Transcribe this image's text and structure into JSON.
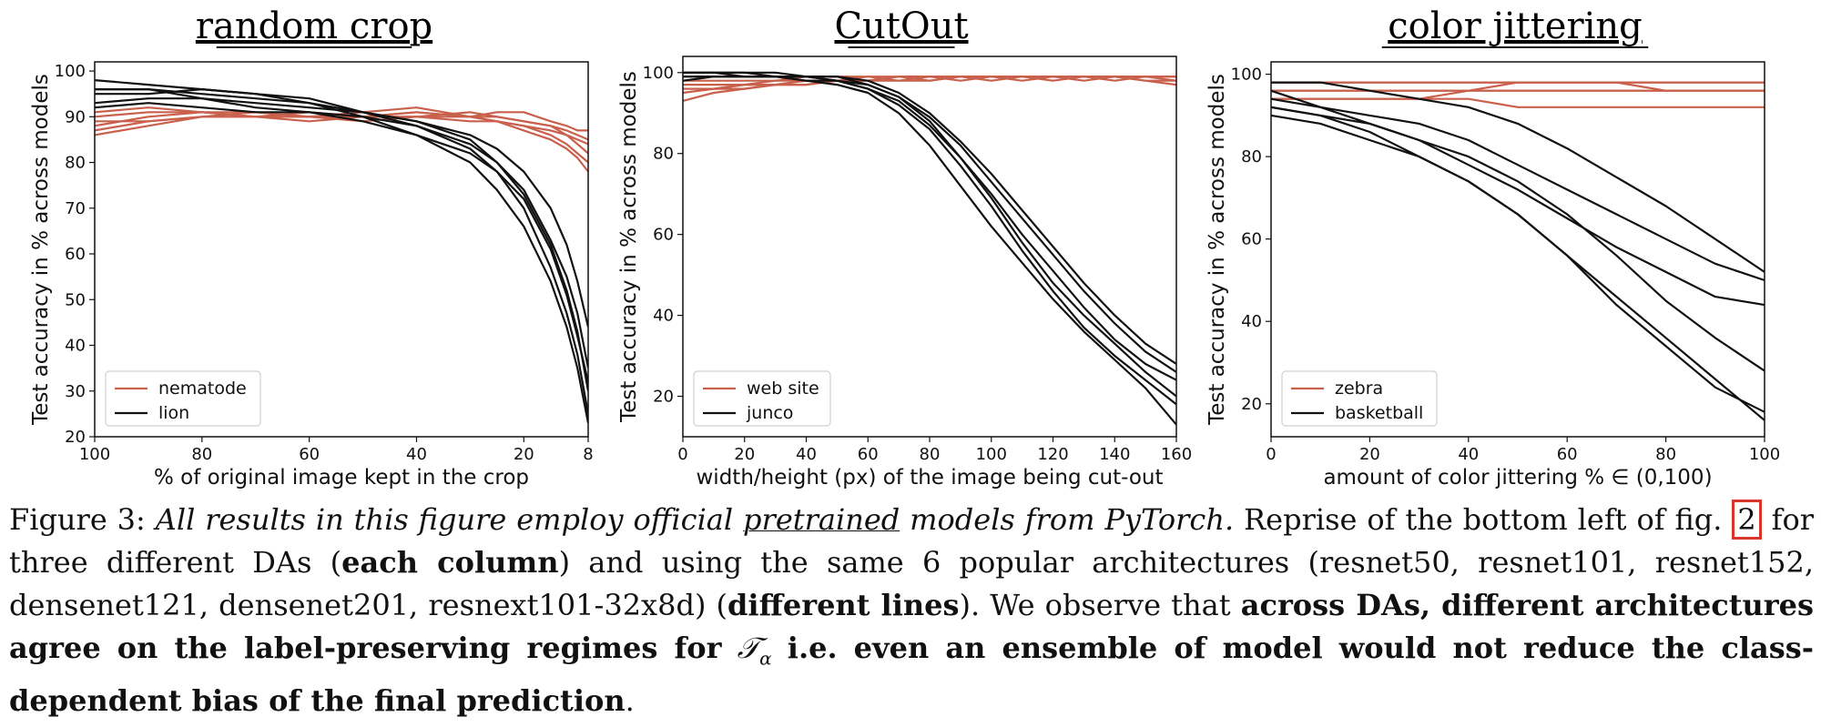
{
  "colors": {
    "red_series": "#c9604c",
    "black_series": "#111111",
    "figref_box": "#d9352b"
  },
  "chart_data": [
    {
      "type": "line",
      "title": "random crop",
      "xlabel": "% of original image kept in the crop",
      "ylabel": "Test accuracy in % across models",
      "xlim": [
        100,
        8
      ],
      "ylim": [
        20,
        102
      ],
      "xticks": [
        100,
        80,
        60,
        40,
        20,
        8
      ],
      "yticks": [
        20,
        30,
        40,
        50,
        60,
        70,
        80,
        90,
        100
      ],
      "legend": [
        "nematode",
        "lion"
      ],
      "legend_position": "lower-left",
      "grid": false,
      "x": [
        100,
        90,
        80,
        70,
        60,
        50,
        40,
        30,
        25,
        20,
        15,
        12,
        10,
        8
      ],
      "series": [
        {
          "name": "nematode",
          "color": "red",
          "values": [
            88,
            90,
            91,
            90,
            90,
            90,
            90,
            89,
            89,
            88,
            87,
            86,
            85,
            84
          ]
        },
        {
          "name": "nematode",
          "color": "red",
          "values": [
            90,
            91,
            91,
            91,
            90,
            90,
            91,
            90,
            90,
            89,
            88,
            87,
            86,
            85
          ]
        },
        {
          "name": "nematode",
          "color": "red",
          "values": [
            86,
            88,
            90,
            90,
            91,
            90,
            90,
            90,
            91,
            91,
            89,
            88,
            87,
            87
          ]
        },
        {
          "name": "nematode",
          "color": "red",
          "values": [
            89,
            89,
            90,
            91,
            90,
            89,
            90,
            91,
            90,
            89,
            88,
            86,
            84,
            82
          ]
        },
        {
          "name": "nematode",
          "color": "red",
          "values": [
            91,
            92,
            91,
            90,
            89,
            90,
            91,
            90,
            89,
            88,
            86,
            84,
            82,
            80
          ]
        },
        {
          "name": "nematode",
          "color": "red",
          "values": [
            87,
            89,
            90,
            90,
            90,
            91,
            92,
            90,
            89,
            87,
            85,
            83,
            81,
            78
          ]
        },
        {
          "name": "lion",
          "color": "black",
          "values": [
            98,
            97,
            96,
            95,
            94,
            91,
            88,
            83,
            78,
            70,
            57,
            47,
            38,
            25
          ]
        },
        {
          "name": "lion",
          "color": "black",
          "values": [
            96,
            96,
            95,
            94,
            93,
            90,
            86,
            80,
            74,
            66,
            54,
            44,
            35,
            23
          ]
        },
        {
          "name": "lion",
          "color": "black",
          "values": [
            92,
            93,
            92,
            91,
            91,
            90,
            88,
            84,
            80,
            74,
            63,
            55,
            47,
            35
          ]
        },
        {
          "name": "lion",
          "color": "black",
          "values": [
            95,
            95,
            96,
            95,
            93,
            91,
            89,
            86,
            83,
            78,
            70,
            62,
            54,
            44
          ]
        },
        {
          "name": "lion",
          "color": "black",
          "values": [
            96,
            96,
            94,
            92,
            91,
            89,
            86,
            82,
            78,
            72,
            61,
            51,
            42,
            32
          ]
        },
        {
          "name": "lion",
          "color": "black",
          "values": [
            93,
            94,
            94,
            93,
            92,
            91,
            89,
            85,
            80,
            73,
            62,
            52,
            43,
            30
          ]
        }
      ]
    },
    {
      "type": "line",
      "title": "CutOut",
      "xlabel": "width/height (px) of the image being cut-out",
      "ylabel": "Test accuracy in % across models",
      "xlim": [
        0,
        160
      ],
      "ylim": [
        10,
        104
      ],
      "xticks": [
        0,
        20,
        40,
        60,
        80,
        100,
        120,
        140,
        160
      ],
      "yticks": [
        20,
        40,
        60,
        80,
        100
      ],
      "legend": [
        "web site",
        "junco"
      ],
      "legend_position": "lower-left",
      "grid": false,
      "x": [
        0,
        10,
        20,
        30,
        40,
        50,
        60,
        70,
        80,
        90,
        100,
        110,
        120,
        130,
        140,
        150,
        160
      ],
      "series": [
        {
          "name": "web site",
          "color": "red",
          "values": [
            95,
            96,
            97,
            97,
            98,
            98,
            98,
            99,
            99,
            99,
            99,
            99,
            99,
            99,
            99,
            99,
            99
          ]
        },
        {
          "name": "web site",
          "color": "red",
          "values": [
            97,
            97,
            97,
            98,
            98,
            98,
            99,
            98,
            99,
            99,
            98,
            99,
            99,
            98,
            99,
            98,
            98
          ]
        },
        {
          "name": "web site",
          "color": "red",
          "values": [
            93,
            95,
            96,
            97,
            97,
            98,
            98,
            98,
            98,
            99,
            99,
            99,
            98,
            99,
            99,
            98,
            97
          ]
        },
        {
          "name": "web site",
          "color": "red",
          "values": [
            96,
            96,
            97,
            97,
            98,
            98,
            98,
            99,
            99,
            98,
            99,
            99,
            99,
            99,
            99,
            99,
            98
          ]
        },
        {
          "name": "web site",
          "color": "red",
          "values": [
            98,
            98,
            98,
            98,
            99,
            99,
            99,
            99,
            99,
            99,
            99,
            99,
            99,
            99,
            99,
            99,
            99
          ]
        },
        {
          "name": "web site",
          "color": "red",
          "values": [
            95,
            96,
            96,
            97,
            97,
            98,
            98,
            99,
            98,
            99,
            99,
            98,
            99,
            99,
            98,
            99,
            99
          ]
        },
        {
          "name": "junco",
          "color": "black",
          "values": [
            100,
            100,
            100,
            100,
            99,
            99,
            97,
            94,
            88,
            79,
            69,
            58,
            48,
            40,
            33,
            26,
            20
          ]
        },
        {
          "name": "junco",
          "color": "black",
          "values": [
            99,
            99,
            99,
            99,
            99,
            98,
            96,
            92,
            86,
            77,
            67,
            56,
            46,
            37,
            30,
            24,
            18
          ]
        },
        {
          "name": "junco",
          "color": "black",
          "values": [
            100,
            100,
            99,
            99,
            98,
            97,
            95,
            90,
            82,
            72,
            62,
            53,
            44,
            36,
            29,
            22,
            13
          ]
        },
        {
          "name": "junco",
          "color": "black",
          "values": [
            98,
            99,
            99,
            99,
            99,
            98,
            97,
            94,
            89,
            82,
            73,
            64,
            55,
            46,
            38,
            31,
            26
          ]
        },
        {
          "name": "junco",
          "color": "black",
          "values": [
            100,
            100,
            100,
            99,
            99,
            99,
            98,
            95,
            90,
            83,
            75,
            66,
            57,
            48,
            40,
            33,
            28
          ]
        },
        {
          "name": "junco",
          "color": "black",
          "values": [
            99,
            99,
            99,
            99,
            98,
            98,
            96,
            93,
            87,
            79,
            70,
            60,
            51,
            42,
            34,
            28,
            24
          ]
        }
      ]
    },
    {
      "type": "line",
      "title": "color jittering",
      "xlabel": "amount of color jittering % ∈ (0,100)",
      "ylabel": "Test accuracy in % across models",
      "xlim": [
        0,
        100
      ],
      "ylim": [
        12,
        103
      ],
      "xticks": [
        0,
        20,
        40,
        60,
        80,
        100
      ],
      "yticks": [
        20,
        40,
        60,
        80,
        100
      ],
      "legend": [
        "zebra",
        "basketball"
      ],
      "legend_position": "lower-left",
      "grid": false,
      "x": [
        0,
        10,
        20,
        30,
        40,
        50,
        60,
        70,
        80,
        90,
        100
      ],
      "series": [
        {
          "name": "zebra",
          "color": "red",
          "values": [
            98,
            98,
            98,
            98,
            98,
            98,
            98,
            98,
            98,
            98,
            98
          ]
        },
        {
          "name": "zebra",
          "color": "red",
          "values": [
            96,
            96,
            96,
            96,
            96,
            96,
            96,
            96,
            96,
            96,
            96
          ]
        },
        {
          "name": "zebra",
          "color": "red",
          "values": [
            94,
            94,
            94,
            94,
            94,
            92,
            92,
            92,
            92,
            92,
            92
          ]
        },
        {
          "name": "zebra",
          "color": "red",
          "values": [
            96,
            96,
            96,
            96,
            96,
            98,
            98,
            98,
            98,
            98,
            98
          ]
        },
        {
          "name": "zebra",
          "color": "red",
          "values": [
            94,
            94,
            94,
            94,
            96,
            96,
            96,
            96,
            96,
            96,
            96
          ]
        },
        {
          "name": "zebra",
          "color": "red",
          "values": [
            98,
            98,
            98,
            98,
            98,
            98,
            98,
            98,
            96,
            96,
            96
          ]
        },
        {
          "name": "basketball",
          "color": "black",
          "values": [
            98,
            98,
            96,
            94,
            92,
            88,
            82,
            75,
            68,
            60,
            52
          ]
        },
        {
          "name": "basketball",
          "color": "black",
          "values": [
            94,
            92,
            90,
            88,
            84,
            78,
            72,
            66,
            60,
            54,
            50
          ]
        },
        {
          "name": "basketball",
          "color": "black",
          "values": [
            92,
            90,
            88,
            84,
            78,
            72,
            65,
            58,
            52,
            46,
            44
          ]
        },
        {
          "name": "basketball",
          "color": "black",
          "values": [
            96,
            92,
            88,
            84,
            80,
            74,
            66,
            56,
            45,
            36,
            28
          ]
        },
        {
          "name": "basketball",
          "color": "black",
          "values": [
            90,
            88,
            84,
            80,
            74,
            66,
            56,
            46,
            36,
            26,
            16
          ]
        },
        {
          "name": "basketball",
          "color": "black",
          "values": [
            92,
            90,
            86,
            80,
            74,
            66,
            56,
            44,
            34,
            24,
            18
          ]
        }
      ]
    }
  ],
  "caption": {
    "label": "Figure 3:",
    "italic_lead": "All results in this figure employ official",
    "italic_underlined": "pretrained",
    "italic_tail": "models from PyTorch.",
    "text1": "Reprise of the bottom left of fig.",
    "figref": "2",
    "text2": "for three different DAs (",
    "bold1": "each column",
    "text3": ") and using the same 6 popular architectures (resnet50, resnet101, resnet152, densenet121, densenet201, resnext101-32x8d) (",
    "bold2": "different lines",
    "text4": "). We observe that",
    "bold3": "across DAs, different architectures agree on the label-preserving regimes for",
    "math": "𝒯",
    "math_sub": "α",
    "bold4": "i.e. even an ensemble of model would not reduce the class-dependent bias of the final prediction",
    "end": "."
  }
}
